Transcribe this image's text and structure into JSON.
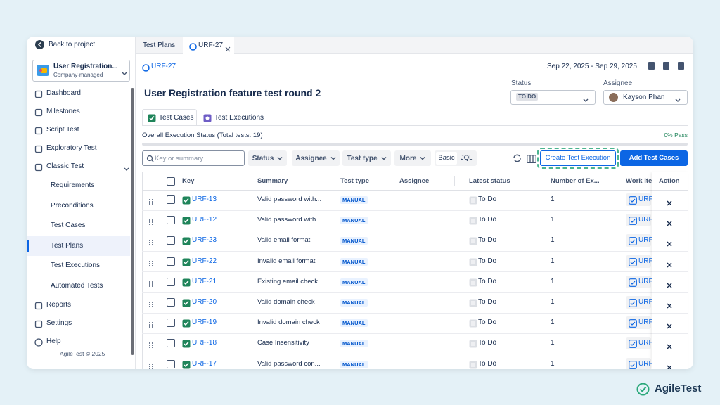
{
  "sidebar": {
    "back": "Back to project",
    "project": {
      "name": "User Registration...",
      "type": "Company-managed"
    },
    "nav": [
      "Dashboard",
      "Milestones",
      "Script Test",
      "Exploratory Test",
      "Classic Test"
    ],
    "classic_sub": [
      "Requirements",
      "Preconditions",
      "Test Cases",
      "Test Plans",
      "Test Executions",
      "Automated Tests"
    ],
    "nav_bottom": [
      "Reports",
      "Settings",
      "Help"
    ],
    "footer": "AgileTest © 2025"
  },
  "tabs": [
    "Test Plans",
    "URF-27"
  ],
  "header": {
    "key": "URF-27",
    "dates": "Sep 22, 2025 - Sep 29, 2025",
    "title": "User Registration feature test round 2",
    "status": {
      "label": "Status",
      "value": "TO DO"
    },
    "assignee": {
      "label": "Assignee",
      "value": "Kayson Phan"
    }
  },
  "subtabs": [
    "Test Cases",
    "Test Executions"
  ],
  "progress": {
    "label": "Overall Execution Status (Total tests: 19)",
    "pass": "0% Pass"
  },
  "toolbar": {
    "search_placeholder": "Key or summary",
    "filters": [
      "Status",
      "Assignee",
      "Test type",
      "More"
    ],
    "modes": [
      "Basic",
      "JQL"
    ],
    "create_button": "Create Test Execution",
    "add_button": "Add Test Cases"
  },
  "table": {
    "columns": [
      "Key",
      "Summary",
      "Test type",
      "Assignee",
      "Latest status",
      "Number of Ex...",
      "Work ite",
      "Action"
    ],
    "rows": [
      {
        "key": "URF-13",
        "summary": "Valid password with...",
        "type": "MANUAL",
        "status": "To Do",
        "executions": 1,
        "work_item": "URF"
      },
      {
        "key": "URF-12",
        "summary": "Valid password with...",
        "type": "MANUAL",
        "status": "To Do",
        "executions": 1,
        "work_item": "URF"
      },
      {
        "key": "URF-23",
        "summary": "Valid email format",
        "type": "MANUAL",
        "status": "To Do",
        "executions": 1,
        "work_item": "URF"
      },
      {
        "key": "URF-22",
        "summary": "Invalid email format",
        "type": "MANUAL",
        "status": "To Do",
        "executions": 1,
        "work_item": "URF"
      },
      {
        "key": "URF-21",
        "summary": "Existing email check",
        "type": "MANUAL",
        "status": "To Do",
        "executions": 1,
        "work_item": "URF"
      },
      {
        "key": "URF-20",
        "summary": "Valid domain check",
        "type": "MANUAL",
        "status": "To Do",
        "executions": 1,
        "work_item": "URF"
      },
      {
        "key": "URF-19",
        "summary": "Invalid domain check",
        "type": "MANUAL",
        "status": "To Do",
        "executions": 1,
        "work_item": "URF"
      },
      {
        "key": "URF-18",
        "summary": "Case Insensitivity",
        "type": "MANUAL",
        "status": "To Do",
        "executions": 1,
        "work_item": "URF"
      },
      {
        "key": "URF-17",
        "summary": "Valid password con...",
        "type": "MANUAL",
        "status": "To Do",
        "executions": 1,
        "work_item": "URF"
      }
    ]
  },
  "brand": "AgileTest"
}
